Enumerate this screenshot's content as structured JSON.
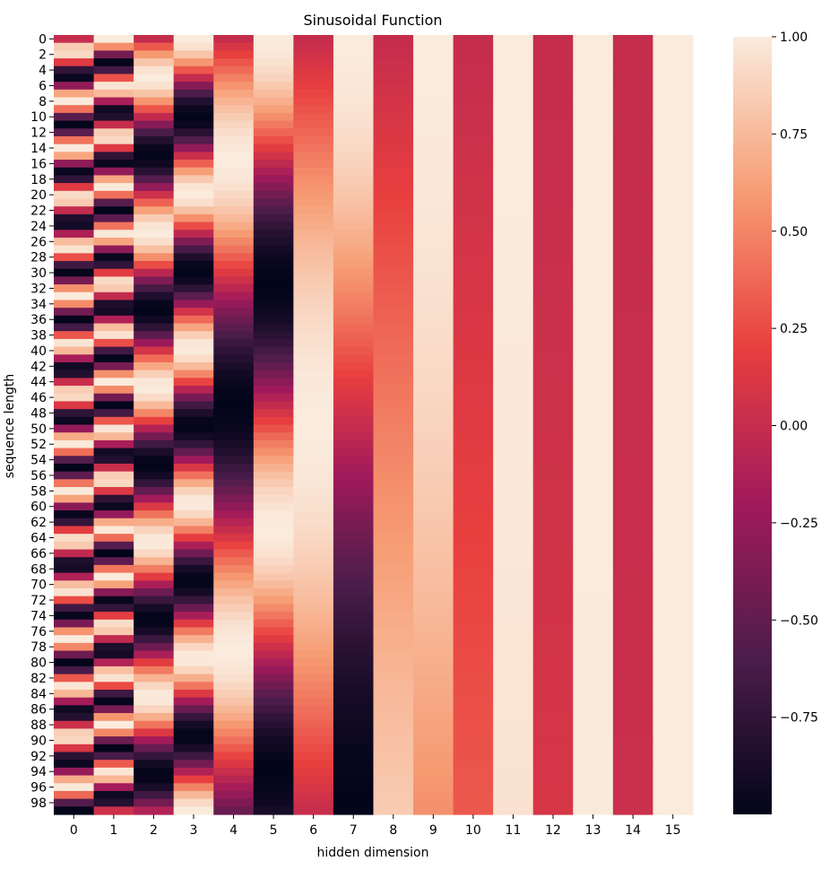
{
  "chart_data": {
    "type": "heatmap",
    "title": "Sinusoidal Function",
    "xlabel": "hidden dimension",
    "ylabel": "sequence length",
    "rows": 100,
    "cols": 16,
    "x_ticks": [
      "0",
      "1",
      "2",
      "3",
      "4",
      "5",
      "6",
      "7",
      "8",
      "9",
      "10",
      "11",
      "12",
      "13",
      "14",
      "15"
    ],
    "y_ticks": [
      "0",
      "2",
      "4",
      "6",
      "8",
      "10",
      "12",
      "14",
      "16",
      "18",
      "20",
      "22",
      "24",
      "26",
      "28",
      "30",
      "32",
      "34",
      "36",
      "38",
      "40",
      "42",
      "44",
      "46",
      "48",
      "50",
      "52",
      "54",
      "56",
      "58",
      "60",
      "62",
      "64",
      "66",
      "68",
      "70",
      "72",
      "74",
      "76",
      "78",
      "80",
      "82",
      "84",
      "86",
      "88",
      "90",
      "92",
      "94",
      "96",
      "98"
    ],
    "value_formula": "PE(pos, i): i even -> sin(pos / 10000^(i/16)); i odd -> cos(pos / 10000^((i-1)/16))",
    "vmin": -1,
    "vmax": 1,
    "colorbar": {
      "ticks": [
        {
          "value": 1.0,
          "label": "1.00"
        },
        {
          "value": 0.75,
          "label": "0.75"
        },
        {
          "value": 0.5,
          "label": "0.50"
        },
        {
          "value": 0.25,
          "label": "0.25"
        },
        {
          "value": 0.0,
          "label": "0.00"
        },
        {
          "value": -0.25,
          "label": "−0.25"
        },
        {
          "value": -0.5,
          "label": "−0.50"
        },
        {
          "value": -0.75,
          "label": "−0.75"
        }
      ]
    },
    "colormap": "rocket",
    "colormap_stops": [
      "#03051a",
      "#4c1d4b",
      "#a11a5b",
      "#e83f3f",
      "#f69c73",
      "#faebdd"
    ]
  }
}
